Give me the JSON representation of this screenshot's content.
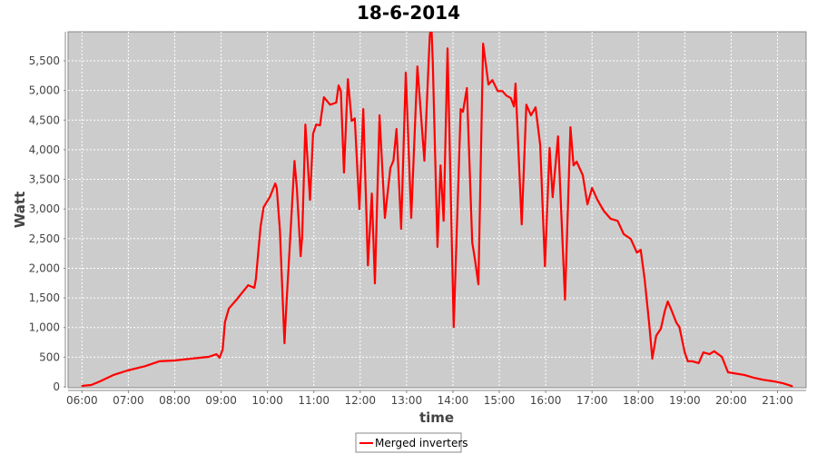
{
  "chart_data": {
    "type": "line",
    "title": "18-6-2014",
    "xlabel": "time",
    "ylabel": "Watt",
    "xlim": [
      "05:42",
      "21:37"
    ],
    "ylim": [
      0,
      5990
    ],
    "x_ticks": [
      "06:00",
      "07:00",
      "08:00",
      "09:00",
      "10:00",
      "11:00",
      "12:00",
      "13:00",
      "14:00",
      "15:00",
      "16:00",
      "17:00",
      "18:00",
      "19:00",
      "20:00",
      "21:00"
    ],
    "y_ticks": [
      {
        "value": 0,
        "label": "0"
      },
      {
        "value": 500,
        "label": "500"
      },
      {
        "value": 1000,
        "label": "1,000"
      },
      {
        "value": 1500,
        "label": "1,500"
      },
      {
        "value": 2000,
        "label": "2,000"
      },
      {
        "value": 2500,
        "label": "2,500"
      },
      {
        "value": 3000,
        "label": "3,000"
      },
      {
        "value": 3500,
        "label": "3,500"
      },
      {
        "value": 4000,
        "label": "4,000"
      },
      {
        "value": 4500,
        "label": "4,500"
      },
      {
        "value": 5000,
        "label": "5,000"
      },
      {
        "value": 5500,
        "label": "5,500"
      }
    ],
    "grid": true,
    "legend_position": "bottom",
    "background": "#cccccc",
    "series": [
      {
        "name": "Merged inverters",
        "color": "#ff0000",
        "points": [
          [
            "06:00",
            15
          ],
          [
            "06:12",
            30
          ],
          [
            "06:23",
            90
          ],
          [
            "06:41",
            200
          ],
          [
            "06:59",
            275
          ],
          [
            "07:22",
            350
          ],
          [
            "07:40",
            430
          ],
          [
            "08:00",
            445
          ],
          [
            "08:21",
            475
          ],
          [
            "08:44",
            505
          ],
          [
            "08:54",
            550
          ],
          [
            "08:58",
            490
          ],
          [
            "09:02",
            630
          ],
          [
            "09:05",
            1090
          ],
          [
            "09:10",
            1320
          ],
          [
            "09:20",
            1470
          ],
          [
            "09:35",
            1715
          ],
          [
            "09:43",
            1670
          ],
          [
            "09:45",
            1820
          ],
          [
            "09:51",
            2700
          ],
          [
            "09:55",
            3030
          ],
          [
            "10:03",
            3200
          ],
          [
            "10:10",
            3430
          ],
          [
            "10:12",
            3350
          ],
          [
            "10:16",
            2650
          ],
          [
            "10:22",
            735
          ],
          [
            "10:24",
            1270
          ],
          [
            "10:30",
            2650
          ],
          [
            "10:35",
            3810
          ],
          [
            "10:38",
            3355
          ],
          [
            "10:43",
            2205
          ],
          [
            "10:45",
            2540
          ],
          [
            "10:49",
            4425
          ],
          [
            "10:55",
            3155
          ],
          [
            "10:59",
            4270
          ],
          [
            "11:03",
            4425
          ],
          [
            "11:08",
            4410
          ],
          [
            "11:13",
            4885
          ],
          [
            "11:21",
            4760
          ],
          [
            "11:29",
            4795
          ],
          [
            "11:32",
            5085
          ],
          [
            "11:35",
            4990
          ],
          [
            "11:39",
            3615
          ],
          [
            "11:44",
            5190
          ],
          [
            "11:49",
            4485
          ],
          [
            "11:53",
            4530
          ],
          [
            "11:59",
            3000
          ],
          [
            "12:04",
            4685
          ],
          [
            "12:10",
            2050
          ],
          [
            "12:15",
            3260
          ],
          [
            "12:19",
            1745
          ],
          [
            "12:25",
            4580
          ],
          [
            "12:32",
            2850
          ],
          [
            "12:39",
            3690
          ],
          [
            "12:43",
            3815
          ],
          [
            "12:47",
            4350
          ],
          [
            "12:53",
            2665
          ],
          [
            "12:59",
            5300
          ],
          [
            "13:06",
            2850
          ],
          [
            "13:14",
            5405
          ],
          [
            "13:23",
            3815
          ],
          [
            "13:30",
            5910
          ],
          [
            "13:32",
            6150
          ],
          [
            "13:34",
            5450
          ],
          [
            "13:40",
            2360
          ],
          [
            "13:44",
            3735
          ],
          [
            "13:48",
            2800
          ],
          [
            "13:53",
            5710
          ],
          [
            "14:01",
            1010
          ],
          [
            "14:10",
            4685
          ],
          [
            "14:13",
            4640
          ],
          [
            "14:18",
            5040
          ],
          [
            "14:25",
            2435
          ],
          [
            "14:28",
            2190
          ],
          [
            "14:33",
            1730
          ],
          [
            "14:39",
            5790
          ],
          [
            "14:46",
            5100
          ],
          [
            "14:51",
            5175
          ],
          [
            "14:58",
            4990
          ],
          [
            "15:04",
            4990
          ],
          [
            "15:09",
            4915
          ],
          [
            "15:15",
            4870
          ],
          [
            "15:19",
            4730
          ],
          [
            "15:21",
            5115
          ],
          [
            "15:29",
            2740
          ],
          [
            "15:35",
            4760
          ],
          [
            "15:41",
            4580
          ],
          [
            "15:47",
            4715
          ],
          [
            "15:53",
            4075
          ],
          [
            "15:59",
            2035
          ],
          [
            "16:05",
            4030
          ],
          [
            "16:09",
            3200
          ],
          [
            "16:16",
            4225
          ],
          [
            "16:25",
            1470
          ],
          [
            "16:32",
            4380
          ],
          [
            "16:36",
            3735
          ],
          [
            "16:40",
            3800
          ],
          [
            "16:48",
            3570
          ],
          [
            "16:54",
            3080
          ],
          [
            "17:00",
            3355
          ],
          [
            "17:07",
            3155
          ],
          [
            "17:15",
            2970
          ],
          [
            "17:24",
            2835
          ],
          [
            "17:33",
            2800
          ],
          [
            "17:41",
            2575
          ],
          [
            "17:50",
            2495
          ],
          [
            "17:58",
            2265
          ],
          [
            "18:03",
            2310
          ],
          [
            "18:08",
            1820
          ],
          [
            "18:14",
            1055
          ],
          [
            "18:18",
            475
          ],
          [
            "18:23",
            860
          ],
          [
            "18:29",
            980
          ],
          [
            "18:34",
            1270
          ],
          [
            "18:38",
            1440
          ],
          [
            "18:43",
            1285
          ],
          [
            "18:49",
            1085
          ],
          [
            "18:53",
            1010
          ],
          [
            "19:00",
            580
          ],
          [
            "19:04",
            430
          ],
          [
            "19:10",
            430
          ],
          [
            "19:18",
            400
          ],
          [
            "19:24",
            580
          ],
          [
            "19:32",
            550
          ],
          [
            "19:38",
            600
          ],
          [
            "19:48",
            505
          ],
          [
            "19:56",
            245
          ],
          [
            "20:03",
            230
          ],
          [
            "20:17",
            200
          ],
          [
            "20:29",
            155
          ],
          [
            "20:41",
            120
          ],
          [
            "20:56",
            90
          ],
          [
            "21:07",
            60
          ],
          [
            "21:19",
            10
          ]
        ]
      }
    ]
  }
}
